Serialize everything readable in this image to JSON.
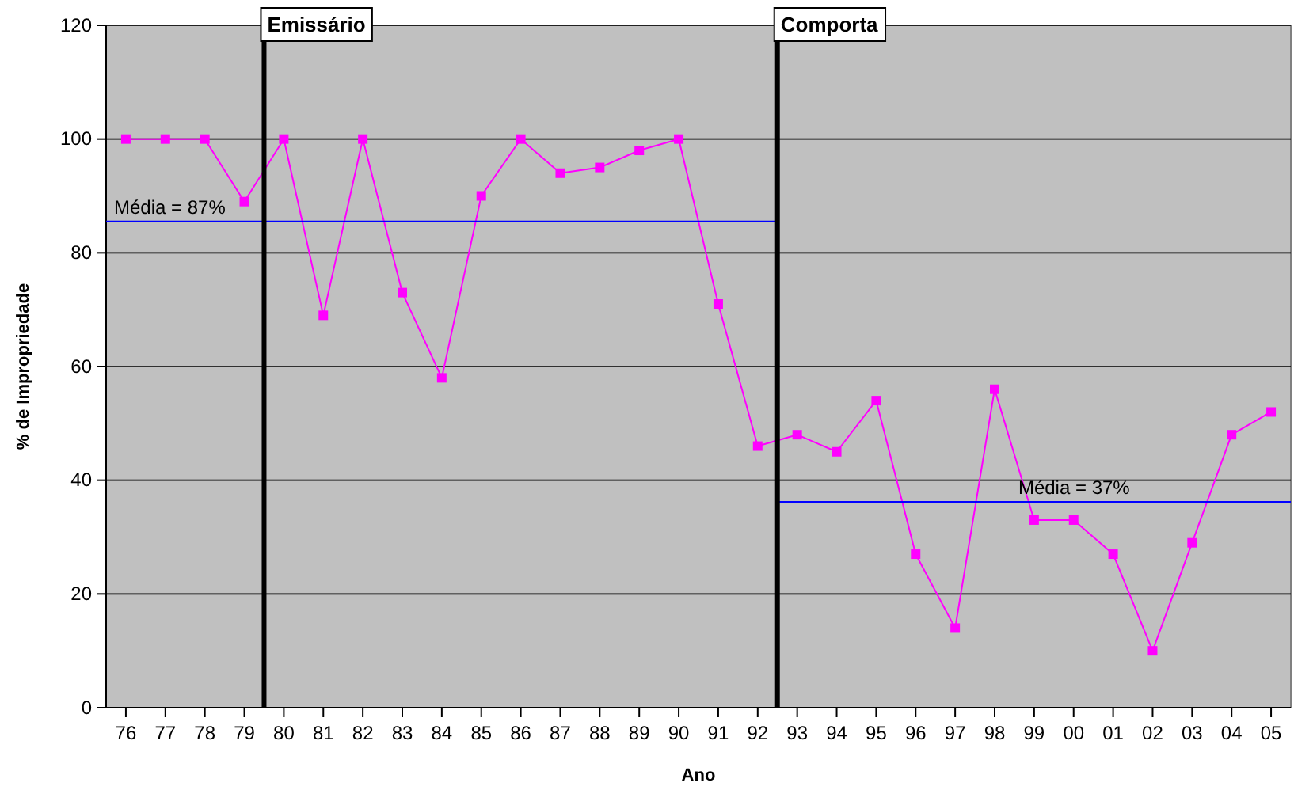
{
  "chart_data": {
    "type": "line",
    "xlabel": "Ano",
    "ylabel": "% de Impropriedade",
    "x": [
      1976,
      1977,
      1978,
      1979,
      1980,
      1981,
      1982,
      1983,
      1984,
      1985,
      1986,
      1987,
      1988,
      1989,
      1990,
      1991,
      1992,
      1993,
      1994,
      1995,
      1996,
      1997,
      1998,
      1999,
      2000,
      2001,
      2002,
      2003,
      2004,
      2005
    ],
    "series": [
      {
        "color": "#ff00ff",
        "marker": "square",
        "values": [
          100,
          100,
          100,
          89,
          100,
          69,
          100,
          73,
          58,
          90,
          100,
          94,
          95,
          98,
          100,
          71,
          46,
          48,
          45,
          54,
          27,
          14,
          56,
          33,
          33,
          27,
          10,
          29,
          48,
          52
        ]
      },
      {
        "type": "line",
        "color": "#0000ff",
        "marker": "none",
        "x": [
          1975.5,
          1992.5
        ],
        "values": [
          85.5,
          85.5
        ]
      },
      {
        "type": "line",
        "color": "#0000ff",
        "marker": "none",
        "x": [
          1992.5,
          2005.5
        ],
        "values": [
          36.2,
          36.2
        ]
      }
    ],
    "xlim": [
      1975.5,
      2005.5
    ],
    "xticks": [
      {
        "value": 1976,
        "label": "76"
      },
      {
        "value": 1977,
        "label": "77"
      },
      {
        "value": 1978,
        "label": "78"
      },
      {
        "value": 1979,
        "label": "79"
      },
      {
        "value": 1980,
        "label": "80"
      },
      {
        "value": 1981,
        "label": "81"
      },
      {
        "value": 1982,
        "label": "82"
      },
      {
        "value": 1983,
        "label": "83"
      },
      {
        "value": 1984,
        "label": "84"
      },
      {
        "value": 1985,
        "label": "85"
      },
      {
        "value": 1986,
        "label": "86"
      },
      {
        "value": 1987,
        "label": "87"
      },
      {
        "value": 1988,
        "label": "88"
      },
      {
        "value": 1989,
        "label": "89"
      },
      {
        "value": 1990,
        "label": "90"
      },
      {
        "value": 1991,
        "label": "91"
      },
      {
        "value": 1992,
        "label": "92"
      },
      {
        "value": 1993,
        "label": "93"
      },
      {
        "value": 1994,
        "label": "94"
      },
      {
        "value": 1995,
        "label": "95"
      },
      {
        "value": 1996,
        "label": "96"
      },
      {
        "value": 1997,
        "label": "97"
      },
      {
        "value": 1998,
        "label": "98"
      },
      {
        "value": 1999,
        "label": "99"
      },
      {
        "value": 2000,
        "label": "00"
      },
      {
        "value": 2001,
        "label": "01"
      },
      {
        "value": 2002,
        "label": "02"
      },
      {
        "value": 2003,
        "label": "03"
      },
      {
        "value": 2004,
        "label": "04"
      },
      {
        "value": 2005,
        "label": "05"
      }
    ],
    "ylim": [
      0,
      120
    ],
    "yticks": [
      0,
      20,
      40,
      60,
      80,
      100,
      120
    ],
    "grid": "y",
    "ref_lines": [
      {
        "axis": "x",
        "value": 1979.5,
        "label": "Emissário",
        "color": "#000000"
      },
      {
        "axis": "x",
        "value": 1992.5,
        "label": "Comporta",
        "color": "#000000"
      }
    ],
    "annotations": [
      {
        "text": "Média = 87%",
        "x": 1975.7,
        "y": 85.5
      },
      {
        "text": "Média = 37%",
        "x": 1998.6,
        "y": 36.2
      }
    ]
  }
}
